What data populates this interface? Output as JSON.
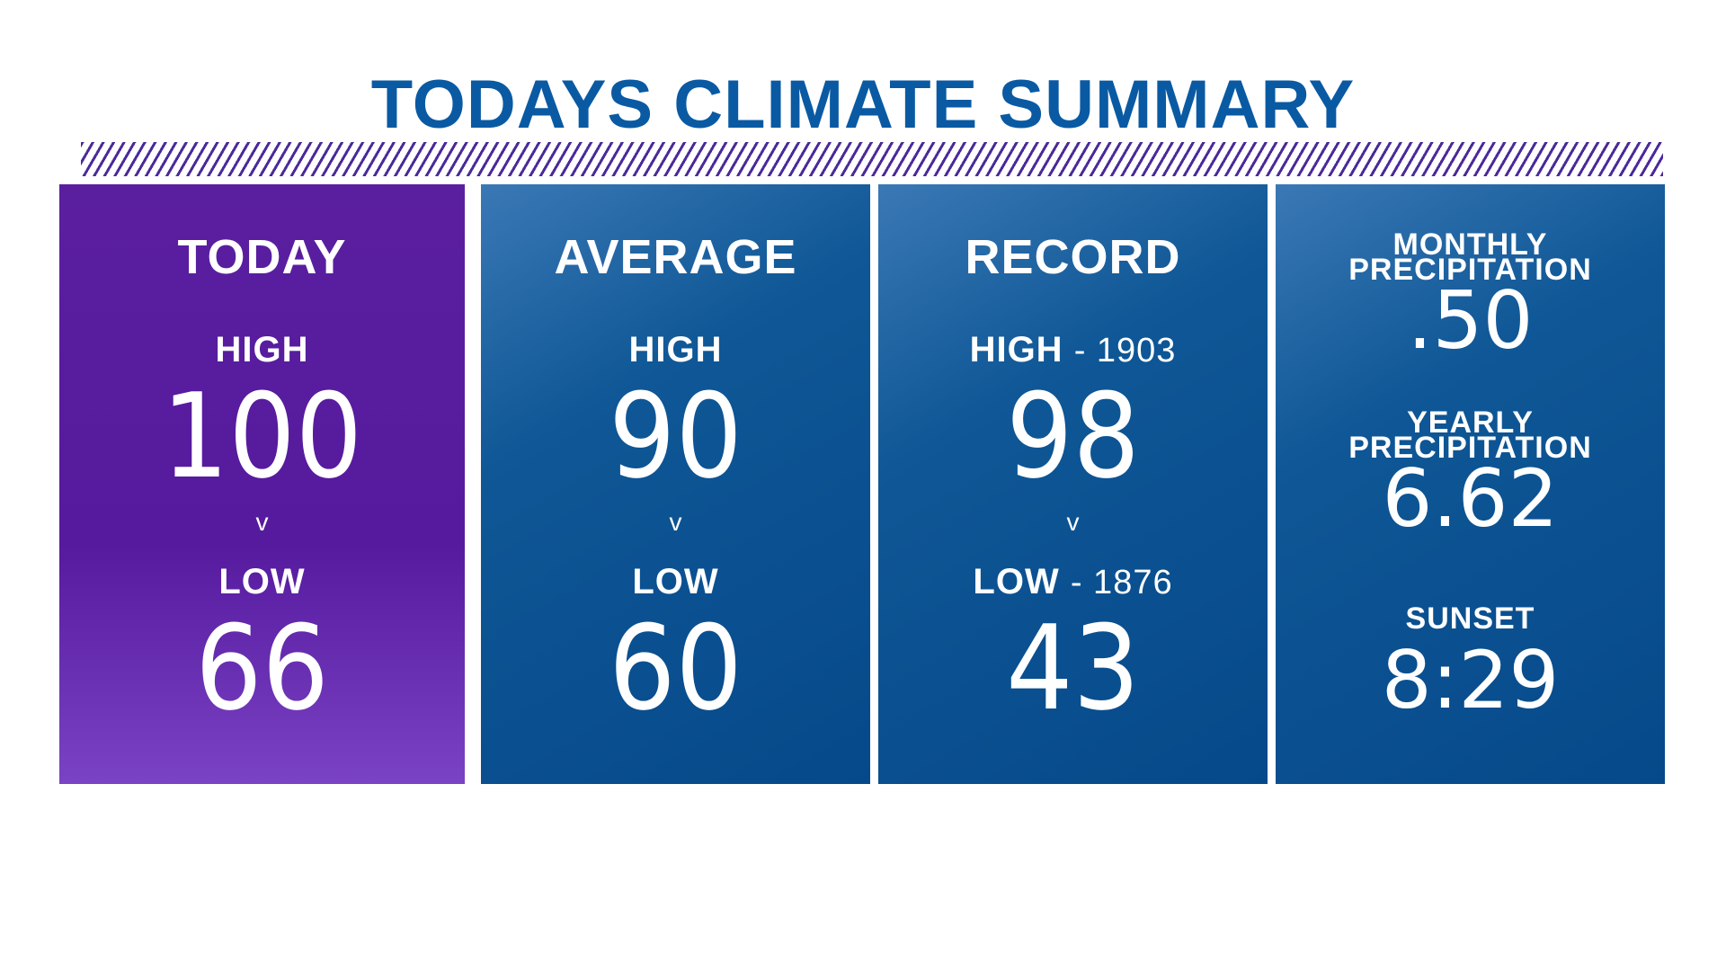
{
  "title": "TODAYS CLIMATE SUMMARY",
  "today": {
    "heading": "TODAY",
    "high_label": "HIGH",
    "high_value": "100",
    "separator": "v",
    "low_label": "LOW",
    "low_value": "66"
  },
  "average": {
    "heading": "AVERAGE",
    "high_label": "HIGH",
    "high_value": "90",
    "separator": "v",
    "low_label": "LOW",
    "low_value": "60"
  },
  "record": {
    "heading": "RECORD",
    "high_label": "HIGH",
    "high_year": "- 1903",
    "high_value": "98",
    "separator": "v",
    "low_label": "LOW",
    "low_year": "- 1876",
    "low_value": "43"
  },
  "precip": {
    "monthly_label_1": "MONTHLY",
    "monthly_label_2": "PRECIPITATION",
    "monthly_value": ".50",
    "yearly_label_1": "YEARLY",
    "yearly_label_2": "PRECIPITATION",
    "yearly_value": "6.62",
    "sunset_label": "SUNSET",
    "sunset_value": "8:29"
  },
  "colors": {
    "title": "#0a5aa3",
    "today_panel": "#561a9e",
    "blue_panel": "#06498a",
    "stripes": "#4a2a9a"
  }
}
